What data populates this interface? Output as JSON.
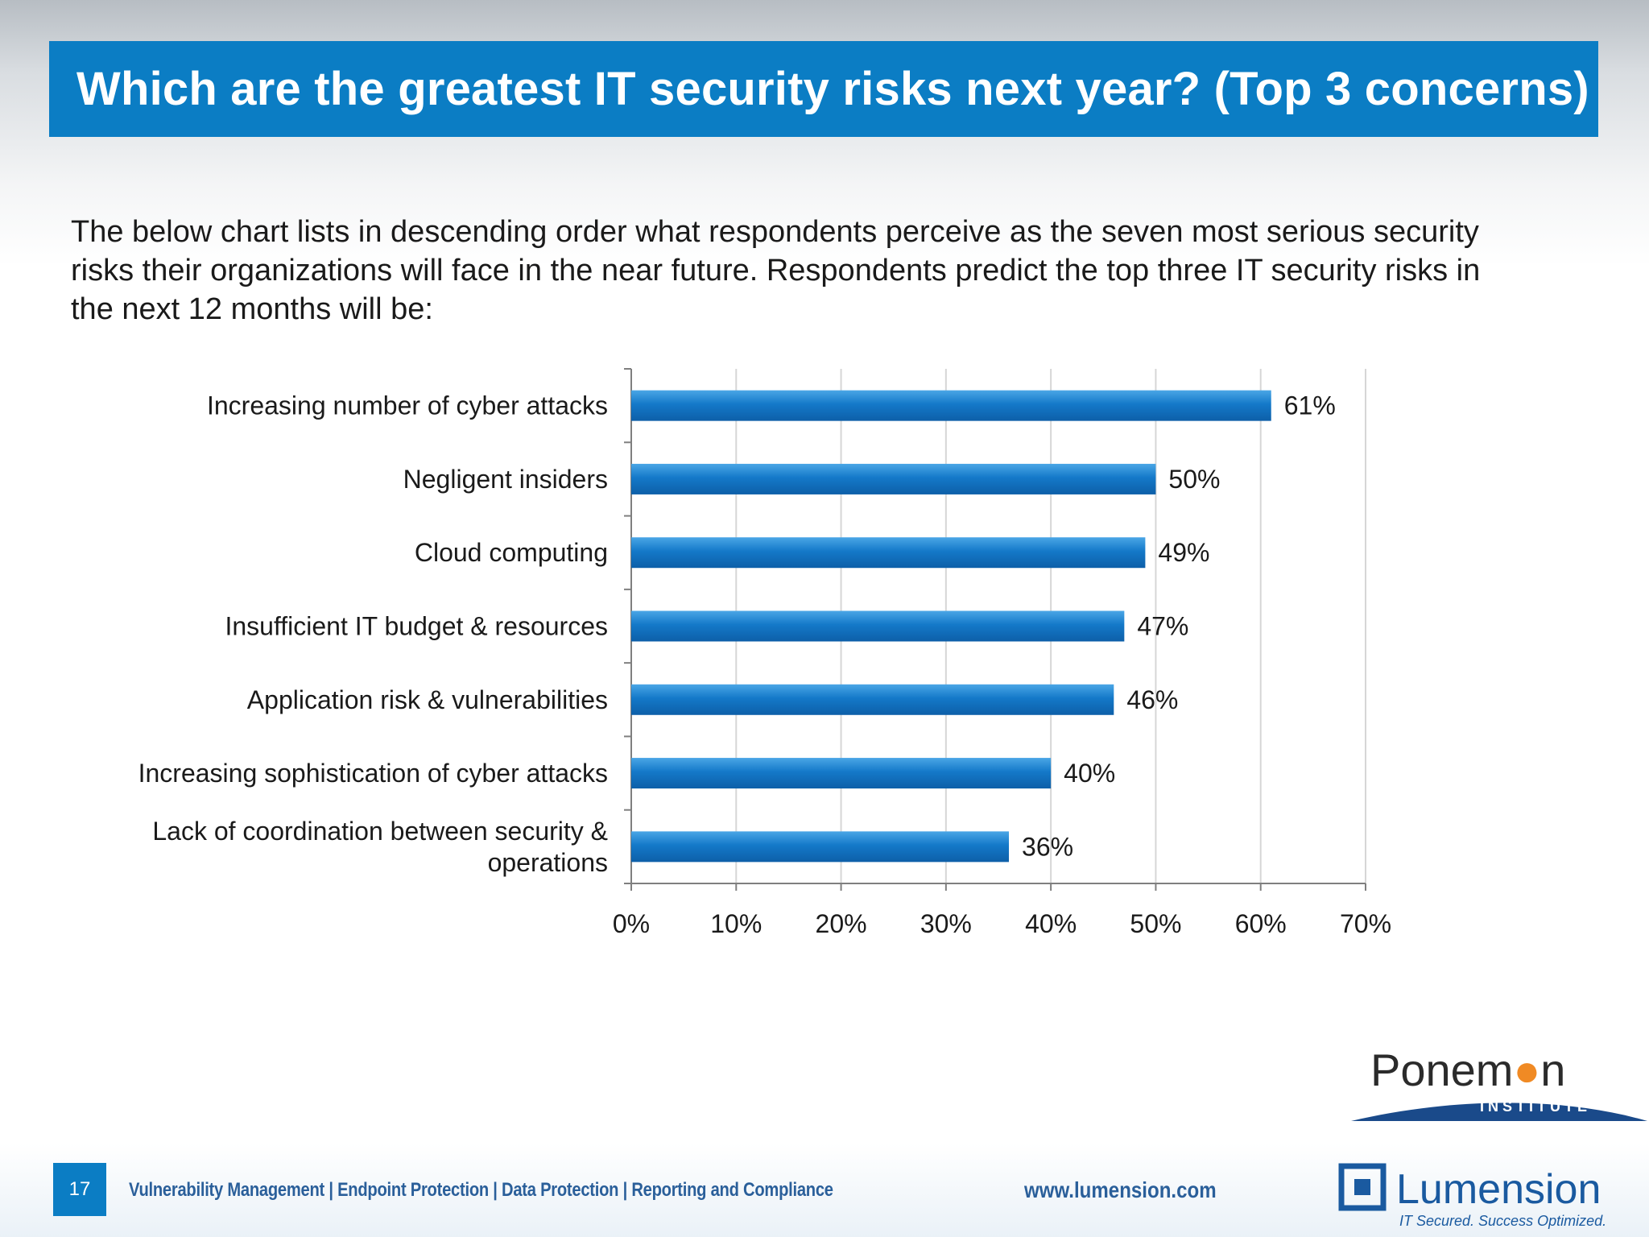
{
  "slide": {
    "title": "Which are the greatest IT security risks next year? (Top 3 concerns)",
    "intro": "The below chart lists in descending order what respondents perceive as the seven most serious security risks their organizations will face in the near future. Respondents predict the top three IT security risks in the next 12 months will be:",
    "page_number": "17",
    "footer_tagline": "Vulnerability Management | Endpoint Protection | Data Protection | Reporting and Compliance",
    "footer_url": "www.lumension.com"
  },
  "logos": {
    "ponemon": {
      "name": "Ponemon",
      "sub": "INSTITUTE"
    },
    "lumension": {
      "name": "Lumension",
      "tagline": "IT Secured. Success Optimized."
    }
  },
  "colors": {
    "accent": "#0b7dc4",
    "bar": "#1479c9",
    "bar_highlight": "#4aa6e6"
  },
  "chart_data": {
    "type": "bar",
    "orientation": "horizontal",
    "categories": [
      "Increasing number of cyber attacks",
      "Negligent insiders",
      "Cloud computing",
      "Insufficient IT budget & resources",
      "Application risk & vulnerabilities",
      "Increasing sophistication of cyber attacks",
      "Lack of coordination between security & operations"
    ],
    "category_lines": [
      [
        "Increasing number of cyber attacks"
      ],
      [
        "Negligent insiders"
      ],
      [
        "Cloud computing"
      ],
      [
        "Insufficient IT budget & resources"
      ],
      [
        "Application risk & vulnerabilities"
      ],
      [
        "Increasing sophistication of cyber attacks"
      ],
      [
        "Lack of coordination between security &",
        "operations"
      ]
    ],
    "values": [
      61,
      50,
      49,
      47,
      46,
      40,
      36
    ],
    "value_labels": [
      "61%",
      "50%",
      "49%",
      "47%",
      "46%",
      "40%",
      "36%"
    ],
    "xlim": [
      0,
      70
    ],
    "xticks": [
      0,
      10,
      20,
      30,
      40,
      50,
      60,
      70
    ],
    "xtick_labels": [
      "0%",
      "10%",
      "20%",
      "30%",
      "40%",
      "50%",
      "60%",
      "70%"
    ],
    "grid": true,
    "legend": "none"
  }
}
